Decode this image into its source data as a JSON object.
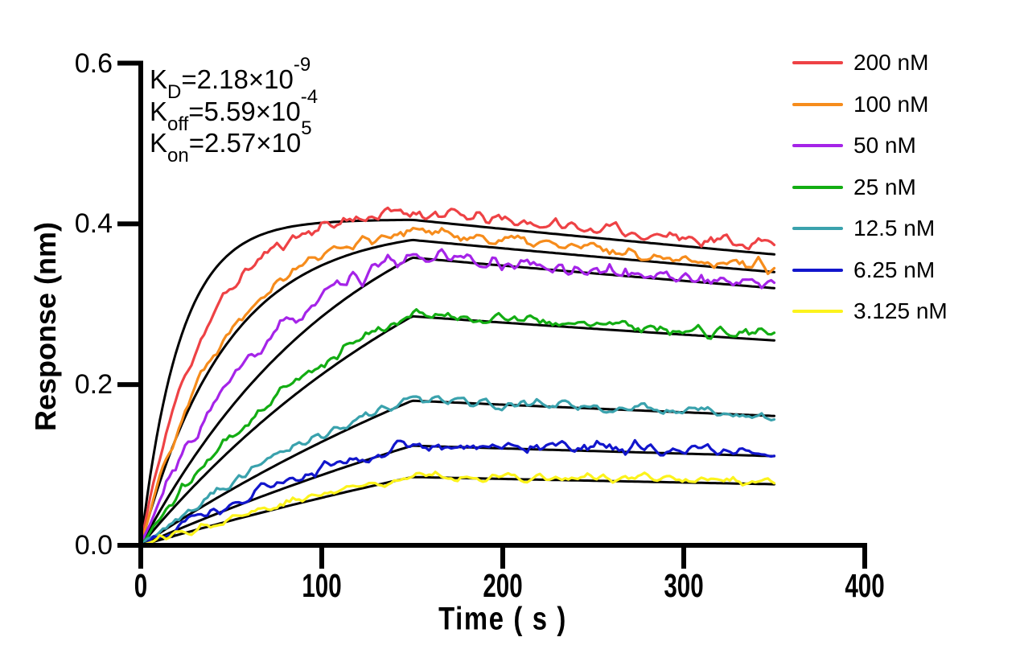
{
  "chart_data": {
    "type": "line",
    "description": "Biolayer interferometry binding kinetics sensorgram: colored noisy response traces for seven analyte concentrations with black global kinetic fit curves",
    "xlabel": "Time ( s )",
    "ylabel": "Response (nm)",
    "xlim": [
      0,
      400
    ],
    "ylim": [
      0,
      0.6
    ],
    "x_ticks": [
      0,
      100,
      200,
      300,
      400
    ],
    "x_tick_labels": [
      "0",
      "100",
      "200",
      "300",
      "400"
    ],
    "y_ticks": [
      0,
      0.2,
      0.4,
      0.6
    ],
    "y_tick_labels": [
      "0.0",
      "0.2",
      "0.4",
      "0.6"
    ],
    "grid": false,
    "legend_position": "right-top",
    "association_end_s": 150,
    "trace_end_s": 350,
    "fit_color": "#000000",
    "annotations": {
      "kd": {
        "base": "K",
        "sub": "D",
        "value": "=2.18×10",
        "exp": "-9"
      },
      "koff": {
        "base": "K",
        "sub": "off",
        "value": "=5.59×10",
        "exp": "-4"
      },
      "kon": {
        "base": "K",
        "sub": "on",
        "value": "=2.57×10",
        "exp": "5"
      }
    },
    "series": [
      {
        "label": "200 nM",
        "concentration_nM": 200,
        "color": "#EE4245",
        "fit": {
          "k_obs": 0.046,
          "peak": 0.405,
          "end": 0.362
        },
        "trace": {
          "k_obs": 0.0285,
          "peak": 0.415,
          "end": 0.374,
          "noise": 0.006,
          "seed": 11
        }
      },
      {
        "label": "100 nM",
        "concentration_nM": 100,
        "color": "#F68C1C",
        "fit": {
          "k_obs": 0.021,
          "peak": 0.38,
          "end": 0.34
        },
        "trace": {
          "k_obs": 0.022,
          "peak": 0.392,
          "end": 0.347,
          "noise": 0.0055,
          "seed": 22
        }
      },
      {
        "label": "50 nM",
        "concentration_nM": 50,
        "color": "#A524E8",
        "fit": {
          "k_obs": 0.0085,
          "peak": 0.358,
          "end": 0.32
        },
        "trace": {
          "k_obs": 0.0135,
          "peak": 0.36,
          "end": 0.325,
          "noise": 0.0068,
          "seed": 33
        }
      },
      {
        "label": "25 nM",
        "concentration_nM": 25,
        "color": "#13AD13",
        "fit": {
          "k_obs": 0.005,
          "peak": 0.285,
          "end": 0.255
        },
        "trace": {
          "k_obs": 0.0078,
          "peak": 0.288,
          "end": 0.262,
          "noise": 0.0052,
          "seed": 44
        }
      },
      {
        "label": "12.5 nM",
        "concentration_nM": 12.5,
        "color": "#3AA2AD",
        "fit": {
          "k_obs": 0.003,
          "peak": 0.18,
          "end": 0.161
        },
        "trace": {
          "k_obs": 0.006,
          "peak": 0.182,
          "end": 0.162,
          "noise": 0.0046,
          "seed": 55
        }
      },
      {
        "label": "6.25 nM",
        "concentration_nM": 6.25,
        "color": "#1216CC",
        "fit": {
          "k_obs": 0.0024,
          "peak": 0.124,
          "end": 0.111
        },
        "trace": {
          "k_obs": 0.005,
          "peak": 0.127,
          "end": 0.117,
          "noise": 0.0055,
          "seed": 66
        }
      },
      {
        "label": "3.125 nM",
        "concentration_nM": 3.125,
        "color": "#FCF31C",
        "fit": {
          "k_obs": 0.0018,
          "peak": 0.085,
          "end": 0.076
        },
        "trace": {
          "k_obs": 0.004,
          "peak": 0.087,
          "end": 0.08,
          "noise": 0.0042,
          "seed": 77
        }
      }
    ]
  }
}
